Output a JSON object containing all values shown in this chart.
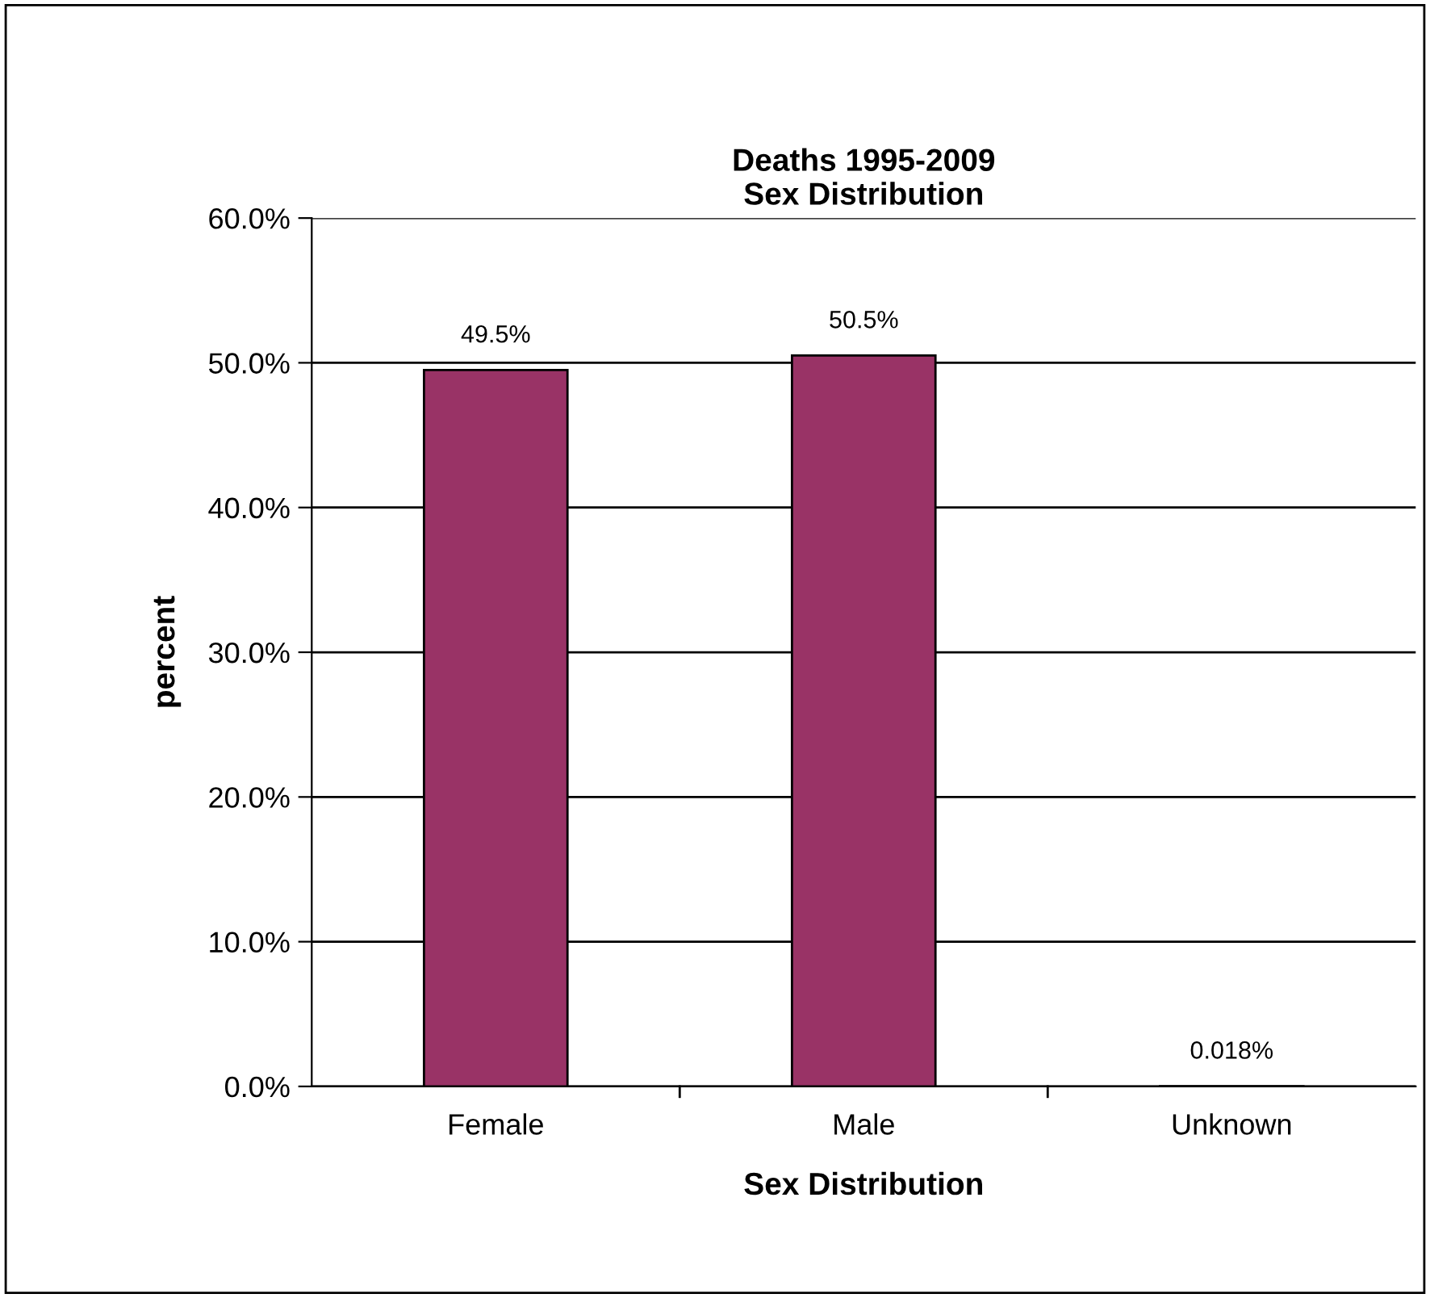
{
  "chart_data": {
    "type": "bar",
    "title": "Deaths 1995-2009\nSex Distribution",
    "xlabel": "Sex Distribution",
    "ylabel": "percent",
    "categories": [
      "Female",
      "Male",
      "Unknown"
    ],
    "values": [
      49.5,
      50.5,
      0.018
    ],
    "value_labels": [
      "49.5%",
      "50.5%",
      "0.018%"
    ],
    "color": "#993366",
    "ylim": [
      0,
      60
    ],
    "yticks": [
      {
        "value": 0,
        "label": "0.0%"
      },
      {
        "value": 10,
        "label": "10.0%"
      },
      {
        "value": 20,
        "label": "20.0%"
      },
      {
        "value": 30,
        "label": "30.0%"
      },
      {
        "value": 40,
        "label": "40.0%"
      },
      {
        "value": 50,
        "label": "50.0%"
      },
      {
        "value": 60,
        "label": "60.0%"
      }
    ],
    "grid": "y",
    "legend": false
  }
}
